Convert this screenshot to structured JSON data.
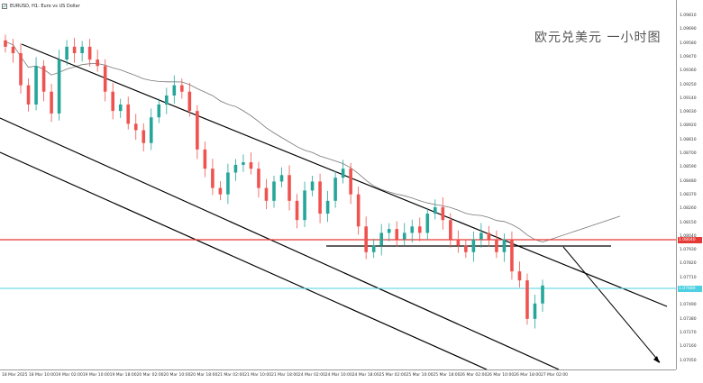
{
  "window": {
    "symbol_title": "EURUSD, H1: Euro vs US Dollar"
  },
  "watermark_text": "欧元兑美元 一小时图",
  "price_axis": {
    "labels": [
      "1.09810",
      "1.09690",
      "1.09580",
      "1.09470",
      "1.09360",
      "1.09250",
      "1.09140",
      "1.09030",
      "1.08920",
      "1.08810",
      "1.08700",
      "1.08590",
      "1.08480",
      "1.08370",
      "1.08260",
      "1.08150",
      "1.08040",
      "1.07930",
      "1.07820",
      "1.07710",
      "1.07600",
      "1.07490",
      "1.07380",
      "1.07270",
      "1.07160",
      "1.07050"
    ],
    "red_line_price": "1.08040",
    "cyan_line_price": "1.07680"
  },
  "time_axis": {
    "labels": [
      "18 Mar 2025",
      "18 Mar 10:00",
      "19 Mar 02:00",
      "19 Mar 10:00",
      "19 Mar 18:00",
      "20 Mar 02:00",
      "20 Mar 10:00",
      "20 Mar 18:00",
      "21 Mar 02:00",
      "21 Mar 10:00",
      "21 Mar 18:00",
      "24 Mar 02:00",
      "24 Mar 10:00",
      "24 Mar 18:00",
      "25 Mar 02:00",
      "25 Mar 10:00",
      "25 Mar 18:00",
      "26 Mar 02:00",
      "26 Mar 10:00",
      "26 Mar 18:00",
      "27 Mar 02:00"
    ]
  },
  "colors": {
    "bull_candle": "#26a69a",
    "bear_candle": "#ef5350",
    "red_level": "#e53935",
    "cyan_level": "#4dd0e1",
    "channel": "#000000",
    "moving_average": "#777777"
  },
  "chart_data": {
    "type": "candlestick",
    "symbol": "EURUSD",
    "timeframe": "H1",
    "ylim": [
      1.07,
      1.0985
    ],
    "grid": false,
    "candles_close": [
      1.095,
      1.0945,
      1.092,
      1.0905,
      1.0935,
      1.0915,
      1.0898,
      1.094,
      1.095,
      1.0945,
      1.095,
      1.094,
      1.0935,
      1.0915,
      1.09,
      1.0905,
      1.089,
      1.0885,
      1.0875,
      1.0895,
      1.0905,
      1.0912,
      1.092,
      1.0915,
      1.09,
      1.087,
      1.0855,
      1.084,
      1.0835,
      1.0852,
      1.0858,
      1.086,
      1.0855,
      1.084,
      1.083,
      1.0845,
      1.085,
      1.083,
      1.0815,
      1.0838,
      1.0845,
      1.082,
      1.083,
      1.0848,
      1.0855,
      1.0835,
      1.081,
      1.079,
      1.0795,
      1.0805,
      1.0808,
      1.08,
      1.0805,
      1.081,
      1.0805,
      1.082,
      1.0825,
      1.0815,
      1.08,
      1.0795,
      1.079,
      1.08,
      1.0805,
      1.08,
      1.079,
      1.08,
      1.0775,
      1.0768,
      1.0738,
      1.075,
      1.0764
    ]
  }
}
